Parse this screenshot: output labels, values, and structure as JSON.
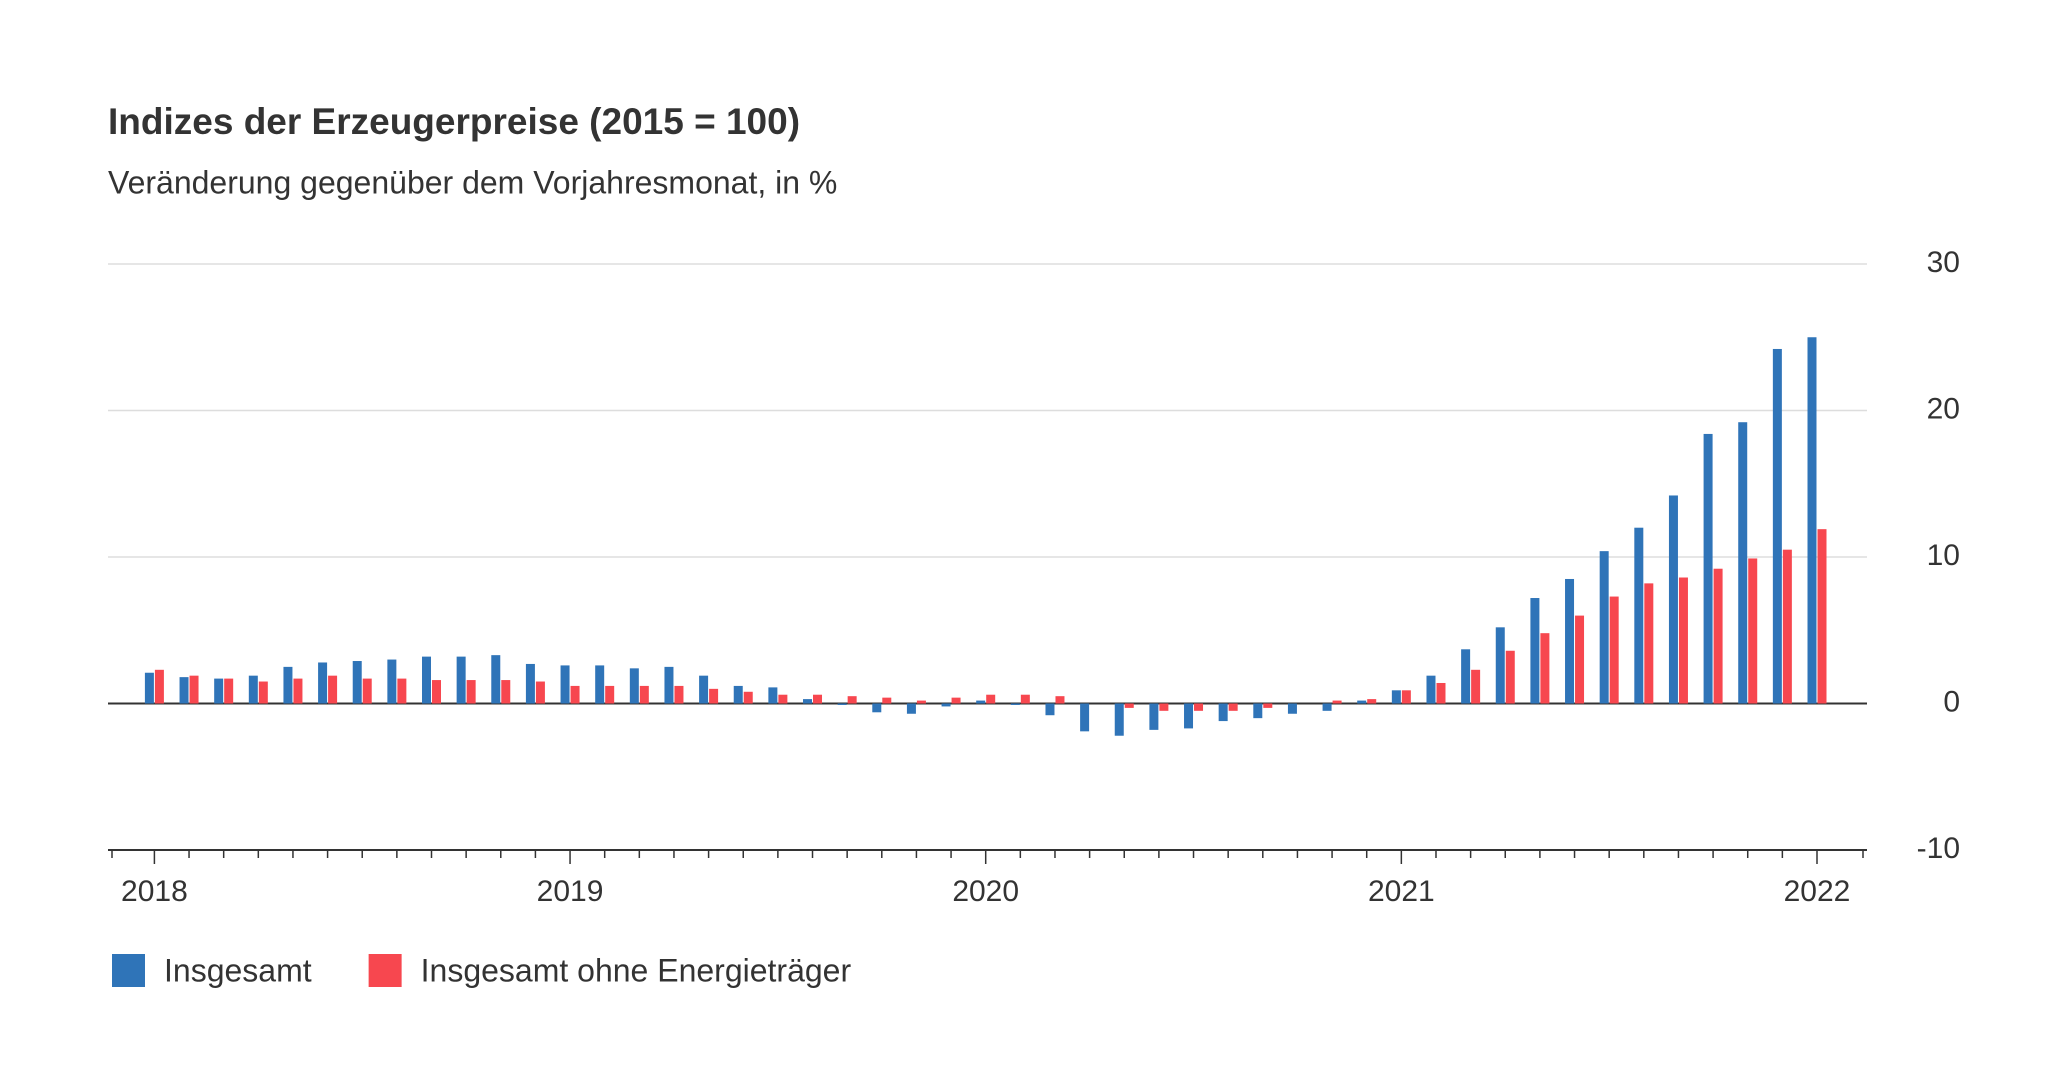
{
  "chart_data": {
    "type": "bar",
    "title": "Indizes der Erzeugerpreise (2015 = 100)",
    "subtitle": "Veränderung gegenüber dem Vorjahresmonat, in %",
    "categories": [
      "2018",
      null,
      null,
      null,
      null,
      null,
      null,
      null,
      null,
      null,
      null,
      null,
      "2019",
      null,
      null,
      null,
      null,
      null,
      null,
      null,
      null,
      null,
      null,
      null,
      "2020",
      null,
      null,
      null,
      null,
      null,
      null,
      null,
      null,
      null,
      null,
      null,
      "2021",
      null,
      null,
      null,
      null,
      null,
      null,
      null,
      null,
      null,
      null,
      null,
      "2022"
    ],
    "series": [
      {
        "name": "Insgesamt",
        "color": "#2f74b8",
        "values": [
          2.1,
          1.8,
          1.7,
          1.9,
          2.5,
          2.8,
          2.9,
          3.0,
          3.2,
          3.2,
          3.3,
          2.7,
          2.6,
          2.6,
          2.4,
          2.5,
          1.9,
          1.2,
          1.1,
          0.3,
          -0.1,
          -0.6,
          -0.7,
          -0.2,
          0.2,
          -0.1,
          -0.8,
          -1.9,
          -2.2,
          -1.8,
          -1.7,
          -1.2,
          -1.0,
          -0.7,
          -0.5,
          0.2,
          0.9,
          1.9,
          3.7,
          5.2,
          7.2,
          8.5,
          10.4,
          12.0,
          14.2,
          18.4,
          19.2,
          24.2,
          25.0
        ]
      },
      {
        "name": "Insgesamt ohne Energieträger",
        "color": "#f7474f",
        "values": [
          2.3,
          1.9,
          1.7,
          1.5,
          1.7,
          1.9,
          1.7,
          1.7,
          1.6,
          1.6,
          1.6,
          1.5,
          1.2,
          1.2,
          1.2,
          1.2,
          1.0,
          0.8,
          0.6,
          0.6,
          0.5,
          0.4,
          0.2,
          0.4,
          0.6,
          0.6,
          0.5,
          0.0,
          -0.3,
          -0.5,
          -0.5,
          -0.5,
          -0.3,
          0.0,
          0.2,
          0.3,
          0.9,
          1.4,
          2.3,
          3.6,
          4.8,
          6.0,
          7.3,
          8.2,
          8.6,
          9.2,
          9.9,
          10.5,
          11.9
        ]
      }
    ],
    "ylim": [
      -10,
      30
    ],
    "yticks": [
      -10,
      0,
      10,
      20,
      30
    ],
    "grid": true
  }
}
